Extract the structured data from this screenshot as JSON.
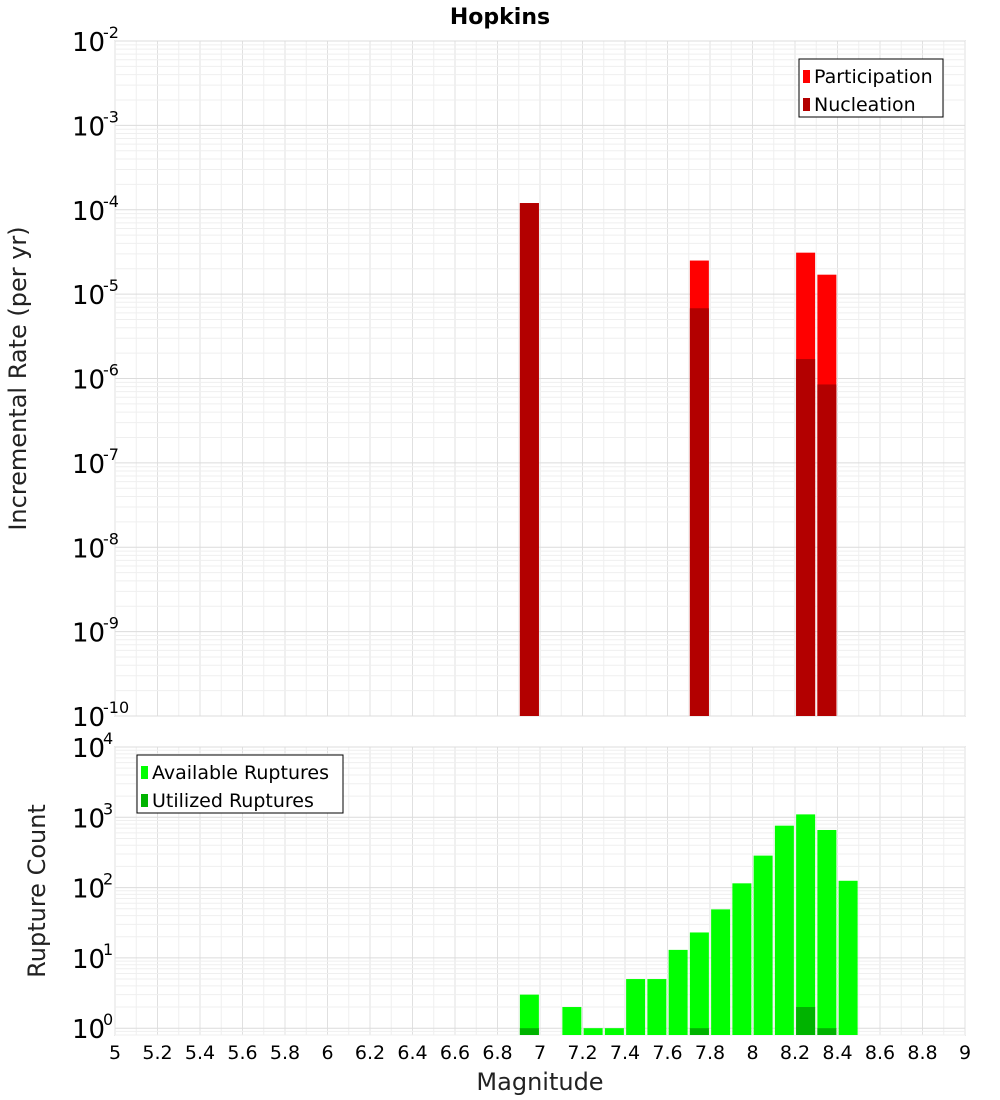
{
  "chart_data": [
    {
      "type": "bar",
      "title": "Hopkins",
      "xlabel": "",
      "ylabel": "Incremental Rate (per yr)",
      "y_scale": "log",
      "xlim": [
        5,
        9
      ],
      "ylim": [
        1e-10,
        0.01
      ],
      "y_tick_exponents": [
        -10,
        -9,
        -8,
        -7,
        -6,
        -5,
        -4,
        -3,
        -2
      ],
      "grid": true,
      "legend_position": "top-right",
      "x": [
        6.95,
        7.75,
        8.25,
        8.35
      ],
      "series": [
        {
          "name": "Participation",
          "color": "#ff0000",
          "values": [
            0.00012,
            2.5e-05,
            3.1e-05,
            1.7e-05
          ]
        },
        {
          "name": "Nucleation",
          "color": "#b30000",
          "values": [
            0.00012,
            6.8e-06,
            1.7e-06,
            8.5e-07
          ]
        }
      ]
    },
    {
      "type": "bar",
      "title": "",
      "xlabel": "Magnitude",
      "ylabel": "Rupture Count",
      "y_scale": "log",
      "xlim": [
        5,
        9
      ],
      "ylim": [
        0.8,
        10000
      ],
      "y_tick_exponents": [
        0,
        1,
        2,
        3,
        4
      ],
      "x_ticks": [
        "5",
        "5.2",
        "5.4",
        "5.6",
        "5.8",
        "6",
        "6.2",
        "6.4",
        "6.6",
        "6.8",
        "7",
        "7.2",
        "7.4",
        "7.6",
        "7.8",
        "8",
        "8.2",
        "8.4",
        "8.6",
        "8.8",
        "9"
      ],
      "grid": true,
      "legend_position": "top-left",
      "x": [
        6.95,
        7.15,
        7.25,
        7.35,
        7.45,
        7.55,
        7.65,
        7.75,
        7.85,
        7.95,
        8.05,
        8.15,
        8.25,
        8.35,
        8.45
      ],
      "series": [
        {
          "name": "Available Ruptures",
          "color": "#00ff00",
          "values": [
            3,
            2,
            1,
            1,
            5,
            5,
            13,
            23,
            49,
            115,
            285,
            760,
            1100,
            660,
            125
          ]
        },
        {
          "name": "Utilized Ruptures",
          "color": "#00b300",
          "values": [
            1,
            0,
            0,
            0,
            0,
            0,
            0,
            1,
            0,
            0,
            0,
            0,
            2,
            1,
            0
          ]
        }
      ]
    }
  ]
}
